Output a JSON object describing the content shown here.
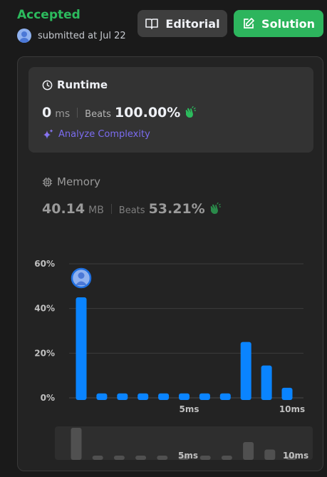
{
  "header": {
    "status": "Accepted",
    "submitted_text": "submitted at Jul 22",
    "editorial_label": "Editorial",
    "solution_label": "Solution"
  },
  "runtime": {
    "title": "Runtime",
    "value": "0",
    "unit": "ms",
    "beats_label": "Beats",
    "beats_pct": "100.00%",
    "analyze_label": "Analyze Complexity"
  },
  "memory": {
    "title": "Memory",
    "value": "40.14",
    "unit": "MB",
    "beats_label": "Beats",
    "beats_pct": "53.21%"
  },
  "colors": {
    "accepted": "#2cbb5d",
    "solution_btn": "#2db55d",
    "bar": "#0a84ff",
    "analyze": "#7b6cf0"
  },
  "chart_data": {
    "type": "bar",
    "x": [
      0,
      1,
      2,
      3,
      4,
      5,
      6,
      7,
      8,
      9,
      10
    ],
    "values": [
      45,
      2,
      2,
      2,
      2,
      2,
      2,
      2,
      25,
      14.5,
      4.5
    ],
    "ylim": [
      0,
      60
    ],
    "yticks": [
      "0%",
      "20%",
      "40%",
      "60%"
    ],
    "ytick_values": [
      0,
      20,
      40,
      60
    ],
    "xticks": [
      "5ms",
      "10ms"
    ],
    "xtick_values": [
      5,
      10
    ],
    "grid": true,
    "user_marker_index": 0,
    "overview_xticks": [
      "5ms",
      "10ms"
    ]
  }
}
